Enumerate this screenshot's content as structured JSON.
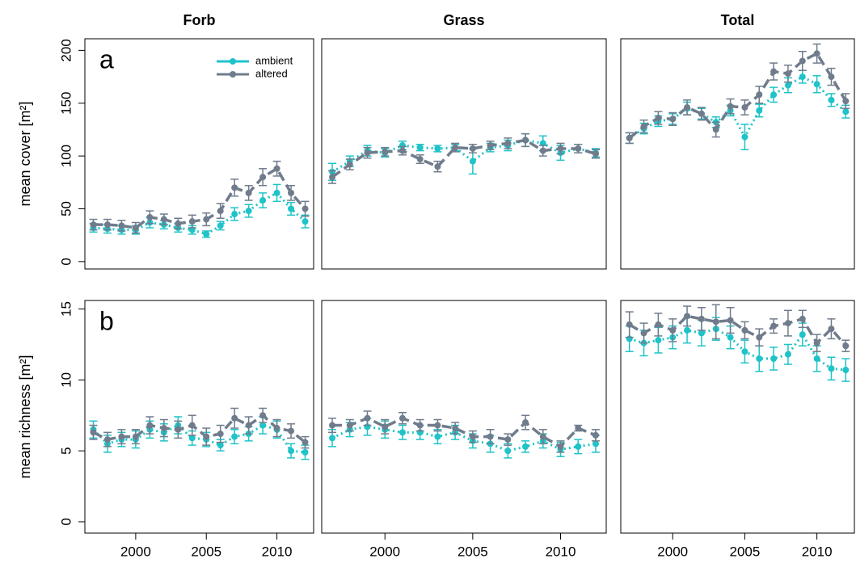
{
  "chart_data": [
    {
      "type": "line",
      "title": "Forb",
      "ylabel": "mean cover [m²]",
      "annotation": "a",
      "legend": "top-right",
      "x": [
        1997,
        1998,
        1999,
        2000,
        2001,
        2002,
        2003,
        2004,
        2005,
        2006,
        2007,
        2008,
        2009,
        2010,
        2011,
        2012
      ],
      "xlim": [
        1996.4,
        2012.6
      ],
      "ylim": [
        -7,
        211
      ],
      "yticks": [
        0,
        50,
        100,
        150,
        200
      ],
      "series": [
        {
          "name": "ambient",
          "color": "#1fc3c8",
          "values": [
            32,
            31,
            30,
            30,
            37,
            35,
            32,
            30,
            26,
            34,
            45,
            48,
            58,
            65,
            50,
            38
          ],
          "errors": [
            4,
            4,
            4,
            4,
            5,
            4,
            4,
            4,
            3,
            4,
            6,
            6,
            7,
            8,
            6,
            6
          ]
        },
        {
          "name": "altered",
          "color": "#707c8c",
          "values": [
            35,
            35,
            34,
            32,
            42,
            40,
            36,
            38,
            40,
            48,
            70,
            65,
            80,
            88,
            65,
            50
          ],
          "errors": [
            5,
            5,
            5,
            5,
            6,
            5,
            5,
            6,
            6,
            7,
            8,
            7,
            8,
            7,
            7,
            7
          ]
        }
      ]
    },
    {
      "type": "line",
      "title": "Grass",
      "x": [
        1997,
        1998,
        1999,
        2000,
        2001,
        2002,
        2003,
        2004,
        2005,
        2006,
        2007,
        2008,
        2009,
        2010,
        2011,
        2012
      ],
      "xlim": [
        1996.4,
        2012.6
      ],
      "ylim": [
        -7,
        211
      ],
      "series": [
        {
          "name": "ambient",
          "color": "#1fc3c8",
          "values": [
            85,
            95,
            105,
            103,
            110,
            108,
            107,
            108,
            95,
            108,
            110,
            115,
            112,
            103,
            107,
            103
          ],
          "errors": [
            8,
            5,
            5,
            4,
            4,
            3,
            3,
            3,
            12,
            4,
            5,
            6,
            7,
            7,
            4,
            4
          ]
        },
        {
          "name": "altered",
          "color": "#707c8c",
          "values": [
            80,
            92,
            103,
            104,
            105,
            97,
            90,
            108,
            107,
            110,
            112,
            115,
            105,
            107,
            107,
            102
          ],
          "errors": [
            6,
            5,
            5,
            4,
            4,
            4,
            5,
            4,
            4,
            4,
            5,
            6,
            5,
            5,
            4,
            4
          ]
        }
      ]
    },
    {
      "type": "line",
      "title": "Total",
      "x": [
        1997,
        1998,
        1999,
        2000,
        2001,
        2002,
        2003,
        2004,
        2005,
        2006,
        2007,
        2008,
        2009,
        2010,
        2011,
        2012
      ],
      "xlim": [
        1996.4,
        2012.6
      ],
      "ylim": [
        -7,
        211
      ],
      "series": [
        {
          "name": "ambient",
          "color": "#1fc3c8",
          "values": [
            117,
            126,
            133,
            135,
            145,
            140,
            132,
            143,
            118,
            143,
            158,
            167,
            175,
            168,
            153,
            142
          ],
          "errors": [
            5,
            5,
            5,
            5,
            6,
            5,
            5,
            5,
            12,
            6,
            7,
            7,
            6,
            8,
            6,
            6
          ]
        },
        {
          "name": "altered",
          "color": "#707c8c",
          "values": [
            117,
            128,
            136,
            135,
            146,
            140,
            125,
            147,
            146,
            158,
            180,
            178,
            190,
            197,
            175,
            152
          ],
          "errors": [
            5,
            6,
            6,
            6,
            7,
            6,
            7,
            7,
            7,
            8,
            8,
            8,
            9,
            9,
            8,
            7
          ]
        }
      ]
    },
    {
      "type": "line",
      "ylabel": "mean richness [m²]",
      "annotation": "b",
      "x": [
        1997,
        1998,
        1999,
        2000,
        2001,
        2002,
        2003,
        2004,
        2005,
        2006,
        2007,
        2008,
        2009,
        2010,
        2011,
        2012
      ],
      "xlim": [
        1996.4,
        2012.6
      ],
      "ylim": [
        -0.8,
        15.6
      ],
      "xticks": [
        2000,
        2005,
        2010
      ],
      "yticks": [
        0,
        5,
        10,
        15
      ],
      "series": [
        {
          "name": "ambient",
          "color": "#1fc3c8",
          "values": [
            6.5,
            5.5,
            5.8,
            5.8,
            6.5,
            6.3,
            6.8,
            5.9,
            5.8,
            5.4,
            6.0,
            6.2,
            6.8,
            6.5,
            5.0,
            4.9
          ],
          "errors": [
            0.6,
            0.6,
            0.5,
            0.6,
            0.6,
            0.6,
            0.6,
            0.5,
            0.5,
            0.4,
            0.5,
            0.5,
            0.6,
            0.6,
            0.5,
            0.5
          ]
        },
        {
          "name": "altered",
          "color": "#707c8c",
          "values": [
            6.3,
            5.8,
            6.0,
            6.0,
            6.8,
            6.6,
            6.5,
            6.8,
            6.0,
            6.2,
            7.3,
            6.8,
            7.5,
            6.6,
            6.4,
            5.6
          ],
          "errors": [
            0.5,
            0.5,
            0.5,
            0.5,
            0.6,
            0.6,
            0.6,
            0.7,
            0.6,
            0.6,
            0.7,
            0.6,
            0.5,
            0.6,
            0.5,
            0.4
          ]
        }
      ]
    },
    {
      "type": "line",
      "x": [
        1997,
        1998,
        1999,
        2000,
        2001,
        2002,
        2003,
        2004,
        2005,
        2006,
        2007,
        2008,
        2009,
        2010,
        2011,
        2012
      ],
      "xlim": [
        1996.4,
        2012.6
      ],
      "ylim": [
        -0.8,
        15.6
      ],
      "xticks": [
        2000,
        2005,
        2010
      ],
      "series": [
        {
          "name": "ambient",
          "color": "#1fc3c8",
          "values": [
            5.9,
            6.5,
            6.7,
            6.5,
            6.3,
            6.3,
            6.0,
            6.3,
            5.7,
            5.5,
            5.0,
            5.3,
            5.7,
            5.1,
            5.3,
            5.5
          ],
          "errors": [
            0.6,
            0.5,
            0.6,
            0.6,
            0.5,
            0.5,
            0.5,
            0.5,
            0.5,
            0.6,
            0.5,
            0.4,
            0.5,
            0.5,
            0.5,
            0.6
          ]
        },
        {
          "name": "altered",
          "color": "#707c8c",
          "values": [
            6.8,
            6.8,
            7.3,
            6.7,
            7.3,
            6.8,
            6.8,
            6.6,
            6.0,
            6.0,
            5.8,
            7.0,
            6.0,
            5.3,
            6.6,
            6.1
          ],
          "errors": [
            0.5,
            0.4,
            0.5,
            0.5,
            0.4,
            0.4,
            0.4,
            0.4,
            0.4,
            0.5,
            0.4,
            0.5,
            0.5,
            0.4,
            0.2,
            0.4
          ]
        }
      ]
    },
    {
      "type": "line",
      "x": [
        1997,
        1998,
        1999,
        2000,
        2001,
        2002,
        2003,
        2004,
        2005,
        2006,
        2007,
        2008,
        2009,
        2010,
        2011,
        2012
      ],
      "xlim": [
        1996.4,
        2012.6
      ],
      "ylim": [
        -0.8,
        15.6
      ],
      "xticks": [
        2000,
        2005,
        2010
      ],
      "series": [
        {
          "name": "ambient",
          "color": "#1fc3c8",
          "values": [
            12.9,
            12.6,
            12.8,
            13.0,
            13.5,
            13.3,
            13.6,
            13.0,
            12.0,
            11.5,
            11.5,
            11.8,
            13.2,
            11.5,
            10.8,
            10.7
          ],
          "errors": [
            0.9,
            0.9,
            0.9,
            0.8,
            0.9,
            0.9,
            0.8,
            0.8,
            0.8,
            0.9,
            0.8,
            0.7,
            0.8,
            0.9,
            0.8,
            0.8
          ]
        },
        {
          "name": "altered",
          "color": "#707c8c",
          "values": [
            13.9,
            13.3,
            13.9,
            13.5,
            14.5,
            14.3,
            14.1,
            14.2,
            13.5,
            13.0,
            13.8,
            14.0,
            14.3,
            12.6,
            13.6,
            12.4
          ],
          "errors": [
            0.9,
            0.7,
            0.8,
            0.8,
            0.7,
            0.8,
            1.2,
            0.9,
            0.6,
            0.6,
            0.5,
            0.9,
            0.6,
            0.6,
            0.7,
            0.4
          ]
        }
      ]
    }
  ]
}
